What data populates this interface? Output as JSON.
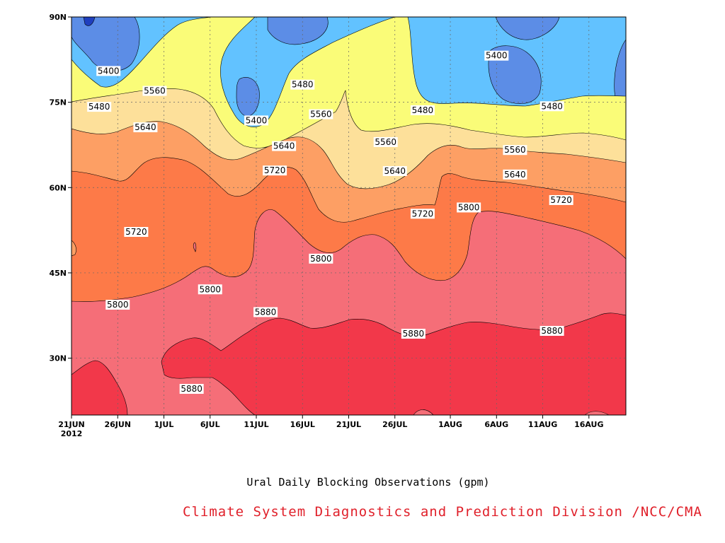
{
  "chart_data": {
    "type": "contour",
    "title": "Ural Daily Blocking Observations (gpm)",
    "credit": "Climate System Diagnostics and Prediction Division /NCC/CMA",
    "x_ticks": [
      "21JUN",
      "26JUN",
      "1JUL",
      "6JUL",
      "11JUL",
      "16JUL",
      "21JUL",
      "26JUL",
      "1AUG",
      "6AUG",
      "11AUG",
      "16AUG"
    ],
    "x_year": "2012",
    "y_ticks": [
      "90N",
      "75N",
      "60N",
      "45N",
      "30N"
    ],
    "ylim": [
      20,
      90
    ],
    "xlim": [
      "2012-06-21",
      "2012-08-20"
    ],
    "grid": true,
    "levels": [
      5400,
      5480,
      5560,
      5640,
      5720,
      5800,
      5880
    ],
    "fill_colors": [
      "#1f3fbf",
      "#5c8de6",
      "#62c2ff",
      "#fafc78",
      "#fde09a",
      "#fd9f64",
      "#fd7a48",
      "#f56e78",
      "#f2384a"
    ],
    "contour_labels": [
      {
        "text": "5400",
        "date": "2012-06-25",
        "lat": 80.5
      },
      {
        "text": "5480",
        "date": "2012-06-24",
        "lat": 74.2
      },
      {
        "text": "5560",
        "date": "2012-06-30",
        "lat": 77.0
      },
      {
        "text": "5640",
        "date": "2012-06-29",
        "lat": 70.6
      },
      {
        "text": "5720",
        "date": "2012-06-28",
        "lat": 52.2
      },
      {
        "text": "5800",
        "date": "2012-06-26",
        "lat": 39.4
      },
      {
        "text": "5400",
        "date": "2012-07-11",
        "lat": 71.8
      },
      {
        "text": "5480",
        "date": "2012-07-16",
        "lat": 78.1
      },
      {
        "text": "5560",
        "date": "2012-07-18",
        "lat": 72.9
      },
      {
        "text": "5640",
        "date": "2012-07-14",
        "lat": 67.3
      },
      {
        "text": "5720",
        "date": "2012-07-13",
        "lat": 63.0
      },
      {
        "text": "5800",
        "date": "2012-07-06",
        "lat": 42.1
      },
      {
        "text": "5880",
        "date": "2012-07-12",
        "lat": 38.1
      },
      {
        "text": "5880",
        "date": "2012-07-04",
        "lat": 24.6
      },
      {
        "text": "5800",
        "date": "2012-07-18",
        "lat": 47.5
      },
      {
        "text": "5560",
        "date": "2012-07-25",
        "lat": 68.0
      },
      {
        "text": "5480",
        "date": "2012-07-29",
        "lat": 73.6
      },
      {
        "text": "5640",
        "date": "2012-07-26",
        "lat": 62.9
      },
      {
        "text": "5720",
        "date": "2012-07-29",
        "lat": 55.4
      },
      {
        "text": "5880",
        "date": "2012-07-28",
        "lat": 34.3
      },
      {
        "text": "5800",
        "date": "2012-08-03",
        "lat": 56.5
      },
      {
        "text": "5400",
        "date": "2012-08-06",
        "lat": 83.2
      },
      {
        "text": "5560",
        "date": "2012-08-08",
        "lat": 66.6
      },
      {
        "text": "5640",
        "date": "2012-08-08",
        "lat": 62.3
      },
      {
        "text": "5480",
        "date": "2012-08-12",
        "lat": 74.3
      },
      {
        "text": "5720",
        "date": "2012-08-13",
        "lat": 57.8
      },
      {
        "text": "5880",
        "date": "2012-08-12",
        "lat": 34.8
      }
    ]
  }
}
